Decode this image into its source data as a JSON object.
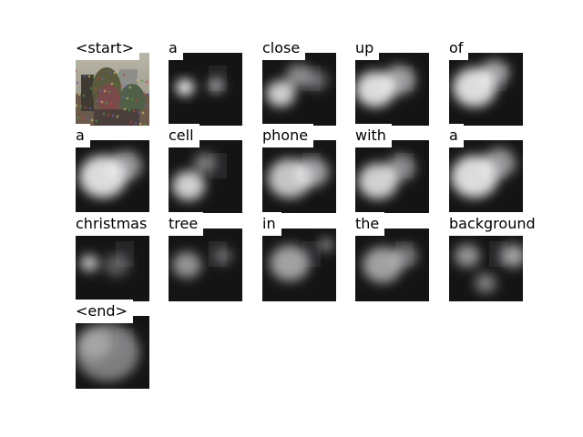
{
  "caption_tokens": [
    {
      "word": "<start>",
      "kind": "source-photo"
    },
    {
      "word": "a",
      "kind": "attention-map"
    },
    {
      "word": "close",
      "kind": "attention-map"
    },
    {
      "word": "up",
      "kind": "attention-map"
    },
    {
      "word": "of",
      "kind": "attention-map"
    },
    {
      "word": "a",
      "kind": "attention-map"
    },
    {
      "word": "cell",
      "kind": "attention-map"
    },
    {
      "word": "phone",
      "kind": "attention-map"
    },
    {
      "word": "with",
      "kind": "attention-map"
    },
    {
      "word": "a",
      "kind": "attention-map"
    },
    {
      "word": "christmas",
      "kind": "attention-map"
    },
    {
      "word": "tree",
      "kind": "attention-map"
    },
    {
      "word": "in",
      "kind": "attention-map"
    },
    {
      "word": "the",
      "kind": "attention-map"
    },
    {
      "word": "background",
      "kind": "attention-map"
    },
    {
      "word": "<end>",
      "kind": "attention-map"
    }
  ]
}
